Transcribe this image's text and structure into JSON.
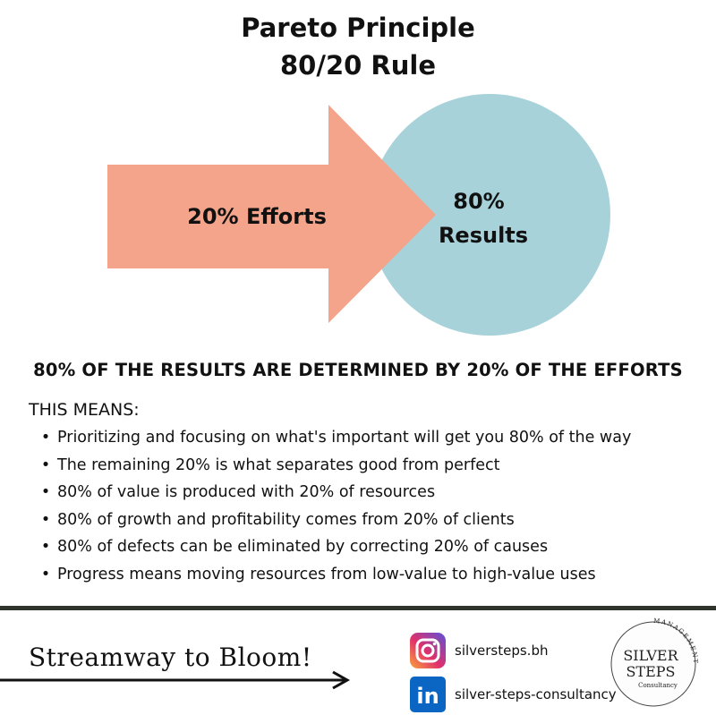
{
  "title": {
    "line1": "Pareto Principle",
    "line2": "80/20 Rule"
  },
  "diagram": {
    "arrow_label": "20% Efforts",
    "circle_label_line1": "80%",
    "circle_label_line2": "Results",
    "colors": {
      "arrow": "#f3a48a",
      "circle": "#a8d2da"
    }
  },
  "headline": "80% OF THE RESULTS ARE DETERMINED BY 20% OF THE EFFORTS",
  "means_label": "THIS MEANS:",
  "points": [
    "Prioritizing and focusing on what's important will get you 80% of the way",
    "The remaining 20% is what separates good from perfect",
    "80% of value is produced with 20% of resources",
    "80% of growth and profitability comes from 20% of clients",
    "80% of defects can be eliminated by correcting 20% of causes",
    "Progress means moving resources from low-value to high-value uses"
  ],
  "footer": {
    "tagline": "Streamway to Bloom!",
    "instagram": {
      "handle": "silversteps.bh",
      "icon": "instagram-icon"
    },
    "linkedin": {
      "handle": "silver-steps-consultancy",
      "icon": "linkedin-icon",
      "glyph": "in"
    },
    "logo": {
      "line1": "SILVER",
      "line2": "STEPS",
      "sub": "Consultancy",
      "arc": "MANAGEMENT"
    }
  }
}
